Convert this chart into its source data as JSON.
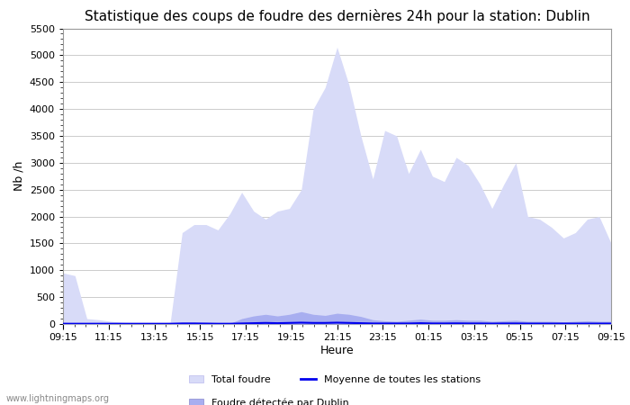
{
  "title": "Statistique des coups de foudre des dernières 24h pour la station: Dublin",
  "xlabel": "Heure",
  "ylabel": "Nb /h",
  "ylim": [
    0,
    5500
  ],
  "yticks": [
    0,
    500,
    1000,
    1500,
    2000,
    2500,
    3000,
    3500,
    4000,
    4500,
    5000,
    5500
  ],
  "x_labels": [
    "09:15",
    "11:15",
    "13:15",
    "15:15",
    "17:15",
    "19:15",
    "21:15",
    "23:15",
    "01:15",
    "03:15",
    "05:15",
    "07:15",
    "09:15"
  ],
  "color_total": "#d8dbf8",
  "color_dublin": "#a8aef0",
  "color_moyenne": "#0000ee",
  "background_color": "#ffffff",
  "watermark": "www.lightningmaps.org",
  "legend_total": "Total foudre",
  "legend_dublin": "Foudre détectée par Dublin",
  "legend_moyenne": "Moyenne de toutes les stations",
  "total_foudre": [
    950,
    900,
    100,
    80,
    50,
    30,
    20,
    15,
    20,
    30,
    1700,
    1850,
    1850,
    1750,
    2050,
    2450,
    2100,
    1950,
    2100,
    2150,
    2500,
    4000,
    4400,
    5150,
    4450,
    3500,
    2700,
    3600,
    3500,
    2800,
    3250,
    2750,
    2650,
    3100,
    2950,
    2600,
    2150,
    2600,
    3000,
    2000,
    1950,
    1800,
    1600,
    1700,
    1950,
    2000,
    1500
  ],
  "dublin_foudre": [
    30,
    20,
    10,
    8,
    5,
    5,
    5,
    5,
    5,
    5,
    30,
    30,
    20,
    10,
    10,
    100,
    150,
    180,
    150,
    180,
    230,
    180,
    160,
    200,
    180,
    140,
    80,
    60,
    50,
    70,
    90,
    70,
    70,
    80,
    70,
    70,
    50,
    60,
    70,
    50,
    50,
    50,
    40,
    50,
    60,
    50,
    50
  ],
  "moyenne": [
    5,
    5,
    5,
    5,
    5,
    5,
    5,
    5,
    5,
    5,
    10,
    10,
    8,
    5,
    5,
    10,
    15,
    20,
    15,
    20,
    25,
    20,
    20,
    25,
    20,
    15,
    10,
    10,
    10,
    10,
    15,
    10,
    10,
    12,
    10,
    10,
    8,
    10,
    10,
    8,
    8,
    8,
    8,
    8,
    8,
    8,
    8
  ]
}
